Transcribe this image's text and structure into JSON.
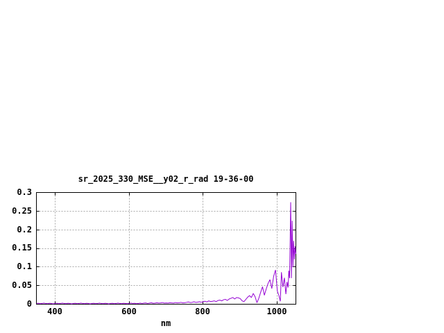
{
  "window": {
    "background": "#ffffff"
  },
  "chart_data": {
    "type": "line",
    "title": "sr_2025_330_MSE__y02_r_rad 19-36-00",
    "xlabel": "nm",
    "ylabel": "",
    "xlim": [
      350,
      1050
    ],
    "ylim": [
      0,
      0.3
    ],
    "xticks": [
      400,
      600,
      800,
      1000
    ],
    "xtick_labels": [
      "400",
      "600",
      "800",
      "1000"
    ],
    "yticks": [
      0,
      0.05,
      0.1,
      0.15,
      0.2,
      0.25,
      0.3
    ],
    "ytick_labels": [
      "0",
      "0.05",
      "0.1",
      "0.15",
      "0.2",
      "0.25",
      "0.3"
    ],
    "grid": "dashed",
    "legend_position": "none",
    "colors": {
      "line": "#9400d3",
      "grid": "#a8a8a8",
      "axis": "#000000",
      "background": "#ffffff"
    },
    "series": [
      {
        "x": [
          350,
          355,
          360,
          365,
          370,
          375,
          380,
          385,
          390,
          395,
          400,
          405,
          410,
          415,
          420,
          425,
          430,
          435,
          440,
          445,
          450,
          455,
          460,
          465,
          470,
          475,
          480,
          485,
          490,
          495,
          500,
          505,
          510,
          515,
          520,
          525,
          530,
          535,
          540,
          545,
          550,
          555,
          560,
          565,
          570,
          575,
          580,
          585,
          590,
          595,
          600,
          605,
          610,
          615,
          620,
          625,
          630,
          635,
          640,
          645,
          650,
          655,
          660,
          665,
          670,
          675,
          680,
          685,
          690,
          695,
          700,
          705,
          710,
          715,
          720,
          725,
          730,
          735,
          740,
          745,
          750,
          755,
          760,
          765,
          770,
          775,
          780,
          785,
          790,
          795,
          800,
          805,
          810,
          815,
          820,
          825,
          830,
          835,
          840,
          845,
          850,
          855,
          860,
          865,
          870,
          875,
          880,
          885,
          890,
          895,
          900,
          905,
          910,
          915,
          920,
          925,
          930,
          935,
          940,
          945,
          950,
          955,
          960,
          965,
          970,
          975,
          980,
          985,
          990,
          995,
          1000,
          1004,
          1008,
          1011,
          1015,
          1019,
          1023,
          1026,
          1029,
          1031,
          1033,
          1036,
          1038,
          1040,
          1042,
          1044,
          1046,
          1048,
          1050
        ],
        "values": [
          0.002,
          0.0025,
          0.0015,
          0.002,
          0.003,
          0.002,
          0.0015,
          0.0025,
          0.002,
          0.001,
          0.002,
          0.0025,
          0.0015,
          0.002,
          0.003,
          0.002,
          0.0015,
          0.0025,
          0.002,
          0.001,
          0.002,
          0.0025,
          0.0015,
          0.002,
          0.003,
          0.002,
          0.0015,
          0.0025,
          0.002,
          0.001,
          0.002,
          0.0025,
          0.0015,
          0.002,
          0.003,
          0.002,
          0.0015,
          0.0025,
          0.002,
          0.001,
          0.002,
          0.0025,
          0.0015,
          0.002,
          0.003,
          0.002,
          0.0015,
          0.0025,
          0.002,
          0.0015,
          0.002,
          0.003,
          0.002,
          0.0025,
          0.0015,
          0.002,
          0.003,
          0.002,
          0.003,
          0.0035,
          0.002,
          0.003,
          0.004,
          0.0025,
          0.003,
          0.004,
          0.003,
          0.0035,
          0.0045,
          0.003,
          0.0035,
          0.003,
          0.004,
          0.0035,
          0.003,
          0.0045,
          0.0035,
          0.004,
          0.005,
          0.0035,
          0.004,
          0.005,
          0.006,
          0.0045,
          0.005,
          0.0065,
          0.005,
          0.0055,
          0.0065,
          0.005,
          0.007,
          0.008,
          0.006,
          0.009,
          0.007,
          0.008,
          0.009,
          0.007,
          0.01,
          0.011,
          0.009,
          0.012,
          0.013,
          0.01,
          0.014,
          0.016,
          0.018,
          0.014,
          0.018,
          0.017,
          0.015,
          0.009,
          0.007,
          0.013,
          0.019,
          0.023,
          0.018,
          0.029,
          0.02,
          0.004,
          0.016,
          0.032,
          0.047,
          0.024,
          0.041,
          0.056,
          0.066,
          0.042,
          0.075,
          0.092,
          0.035,
          0.024,
          0.008,
          0.086,
          0.046,
          0.071,
          0.027,
          0.06,
          0.045,
          0.09,
          0.07,
          0.274,
          0.07,
          0.224,
          0.1,
          0.17,
          0.12,
          0.155,
          0.135
        ]
      }
    ]
  }
}
